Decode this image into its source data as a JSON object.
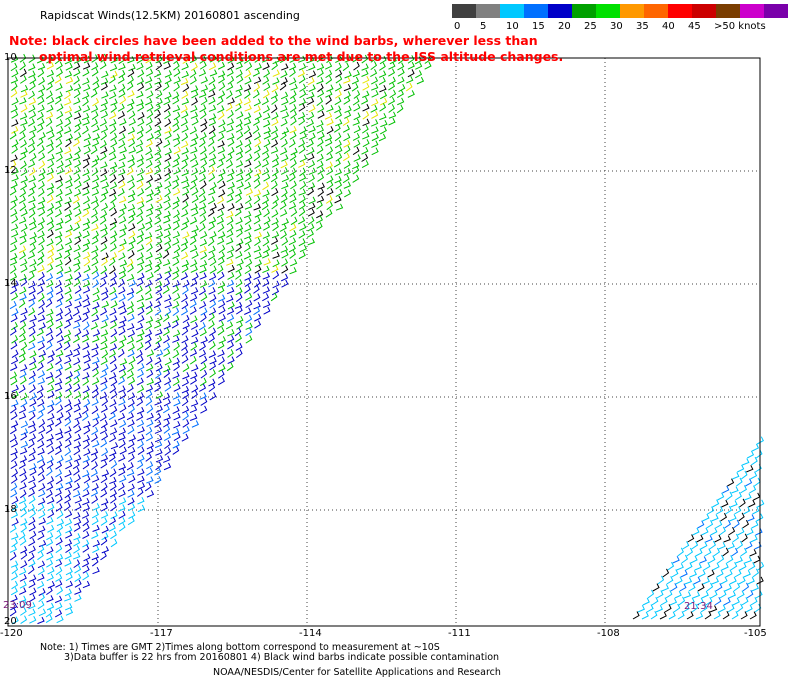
{
  "title": "Rapidscat Winds(12.5KM) 20160801 ascending",
  "legend": {
    "colors": [
      "#404040",
      "#808080",
      "#00c8ff",
      "#0070ff",
      "#0000c8",
      "#00a000",
      "#00e000",
      "#ff9900",
      "#ff6600",
      "#ff0000",
      "#cc0000",
      "#7a3d00",
      "#cc00cc",
      "#7a00aa"
    ],
    "labels": [
      "0",
      "5",
      "10",
      "15",
      "20",
      "25",
      "30",
      "35",
      "40",
      "45",
      ">50 knots"
    ]
  },
  "note": {
    "line1": "Note: black circles have been added to the wind barbs, wherever less than",
    "line2": "optimal wind retrieval conditions are met due to the ISS altitude changes."
  },
  "axes": {
    "x_ticks": [
      "-120",
      "-117",
      "-114",
      "-111",
      "-108",
      "-105"
    ],
    "y_ticks": [
      "10",
      "12",
      "14",
      "16",
      "18",
      "20"
    ]
  },
  "times": {
    "left": "23:09",
    "right": "21:34"
  },
  "footer": {
    "line1": "Note: 1) Times are GMT 2)Times along bottom correspond to measurement at ~10S",
    "line2": "3)Data buffer is 22 hrs from 20160801 4) Black wind barbs indicate possible contamination",
    "credit": "NOAA/NESDIS/Center for Satellite Applications and Research"
  }
}
